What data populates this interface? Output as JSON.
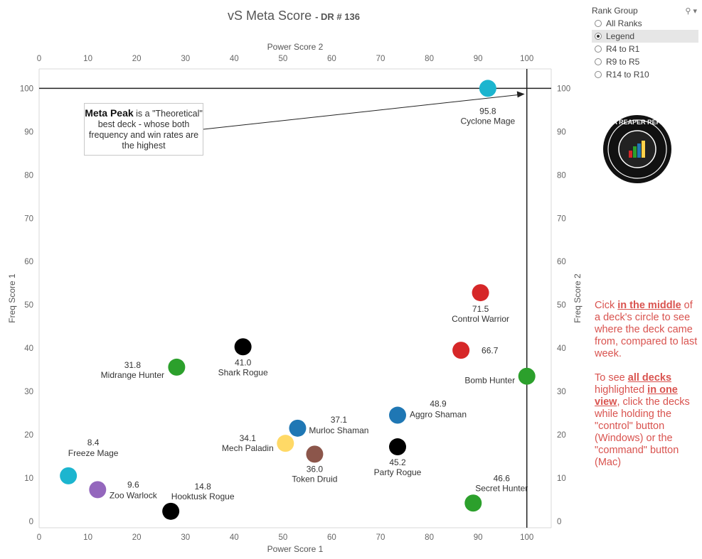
{
  "title_main": "vS Meta Score",
  "title_sub": "- DR # 136",
  "callout": {
    "strong": "Meta Peak",
    "text": "is a \"Theoretical\" best deck - whose both frequency and win rates are the highest"
  },
  "rank_group": {
    "label": "Rank Group",
    "options": [
      {
        "label": "All Ranks",
        "selected": false
      },
      {
        "label": "Legend",
        "selected": true
      },
      {
        "label": "R4 to R1",
        "selected": false
      },
      {
        "label": "R9 to R5",
        "selected": false
      },
      {
        "label": "R14 to R10",
        "selected": false
      }
    ]
  },
  "logo_text": "DATA REAPER REPORT",
  "instructions": {
    "p1_a": "Cick ",
    "p1_b": "in the middle",
    "p1_c": " of a deck's circle to see where the deck came from, compared to last week.",
    "p2_a": "To see ",
    "p2_b": "all decks ",
    "p2_c": "highlighted ",
    "p2_d": "in one view",
    "p2_e": ", click the decks while holding the \"control\" button (Windows) or the \"command\" button (Mac)"
  },
  "chart_data": {
    "type": "scatter",
    "x_title_bottom": "Power Score 1",
    "x_title_top": "Power Score 2",
    "y_title_left": "Freq Score 1",
    "y_title_right": "Freq Score 2",
    "xlim": [
      0,
      105
    ],
    "ylim": [
      -1.5,
      104.5
    ],
    "x_ticks": [
      0,
      10,
      20,
      30,
      40,
      50,
      60,
      70,
      80,
      90,
      100
    ],
    "y_ticks": [
      0,
      10,
      20,
      30,
      40,
      50,
      60,
      70,
      80,
      90,
      100
    ],
    "reference_lines": {
      "x": 100,
      "y": 100
    },
    "meta_peak": {
      "x": 100,
      "y": 100
    },
    "points": [
      {
        "name": "Cyclone Mage",
        "score": "95.8",
        "x": 92,
        "y": 100,
        "color": "#1cb5cf"
      },
      {
        "name": "Control Warrior",
        "score": "71.5",
        "x": 90.5,
        "y": 52.8,
        "color": "#d62728"
      },
      {
        "name": "",
        "score": "",
        "x": 86.5,
        "y": 39.5,
        "color": "#d62728"
      },
      {
        "name": "Bomb Hunter",
        "score": "66.7",
        "x": 100,
        "y": 33.5,
        "color": "#2ca02c"
      },
      {
        "name": "Shark Rogue",
        "score": "41.0",
        "x": 41.8,
        "y": 40.3,
        "color": "#000000"
      },
      {
        "name": "Midrange Hunter",
        "score": "31.8",
        "x": 28.2,
        "y": 35.6,
        "color": "#2ca02c"
      },
      {
        "name": "Aggro Shaman",
        "score": "48.9",
        "x": 73.5,
        "y": 24.5,
        "color": "#1f77b4"
      },
      {
        "name": "Murloc Shaman",
        "score": "37.1",
        "x": 53,
        "y": 21.5,
        "color": "#1f77b4"
      },
      {
        "name": "Mech Paladin",
        "score": "34.1",
        "x": 50.5,
        "y": 18,
        "color": "#ffd966"
      },
      {
        "name": "Token Druid",
        "score": "36.0",
        "x": 56.5,
        "y": 15.5,
        "color": "#8c564b"
      },
      {
        "name": "Party Rogue",
        "score": "45.2",
        "x": 73.5,
        "y": 17.2,
        "color": "#000000"
      },
      {
        "name": "Freeze Mage",
        "score": "8.4",
        "x": 6,
        "y": 10.5,
        "color": "#1cb5cf"
      },
      {
        "name": "Zoo Warlock",
        "score": "9.6",
        "x": 12,
        "y": 7.3,
        "color": "#9467bd"
      },
      {
        "name": "Hooktusk Rogue",
        "score": "14.8",
        "x": 27,
        "y": 2.3,
        "color": "#000000"
      },
      {
        "name": "Secret Hunter",
        "score": "46.6",
        "x": 89,
        "y": 4.2,
        "color": "#2ca02c"
      }
    ]
  }
}
